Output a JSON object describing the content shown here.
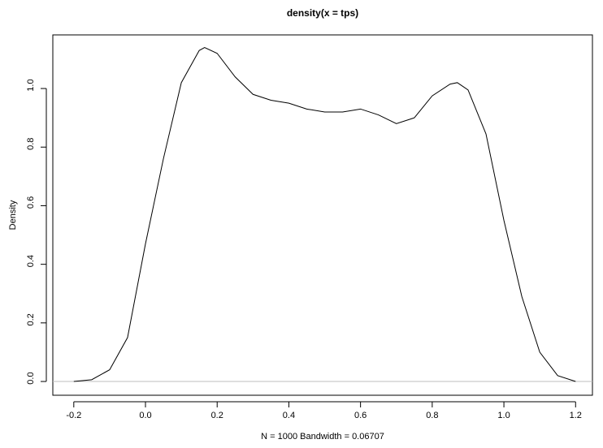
{
  "chart_data": {
    "type": "line",
    "title": "density(x = tps)",
    "x_label": "N = 1000   Bandwidth = 0.06707",
    "y_label": "Density",
    "x": [
      -0.2,
      -0.15,
      -0.1,
      -0.05,
      0.0,
      0.05,
      0.1,
      0.15,
      0.165,
      0.2,
      0.25,
      0.3,
      0.35,
      0.4,
      0.45,
      0.5,
      0.55,
      0.6,
      0.65,
      0.7,
      0.75,
      0.8,
      0.85,
      0.87,
      0.9,
      0.95,
      1.0,
      1.05,
      1.1,
      1.15,
      1.2
    ],
    "series": [
      {
        "name": "density",
        "color": "#000000",
        "values": [
          0.0,
          0.006,
          0.04,
          0.15,
          0.47,
          0.76,
          1.02,
          1.13,
          1.14,
          1.12,
          1.04,
          0.98,
          0.96,
          0.95,
          0.93,
          0.92,
          0.92,
          0.93,
          0.91,
          0.88,
          0.9,
          0.975,
          1.015,
          1.02,
          0.995,
          0.845,
          0.55,
          0.29,
          0.1,
          0.02,
          0.0
        ]
      }
    ],
    "xlim": [
      -0.2585,
      1.247
    ],
    "ylim": [
      -0.047,
      1.183
    ],
    "xticks": [
      -0.2,
      {
        "value": 0,
        "label": "0.0"
      },
      0.2,
      0.4,
      0.6,
      0.8,
      {
        "value": 1,
        "label": "1.0"
      },
      1.2
    ],
    "yticks": [
      {
        "value": 0,
        "label": "0.0"
      },
      0.2,
      0.4,
      0.6,
      0.8,
      {
        "value": 1,
        "label": "1.0"
      }
    ],
    "zero_line": true,
    "zero_line_color": "#bebebe"
  }
}
